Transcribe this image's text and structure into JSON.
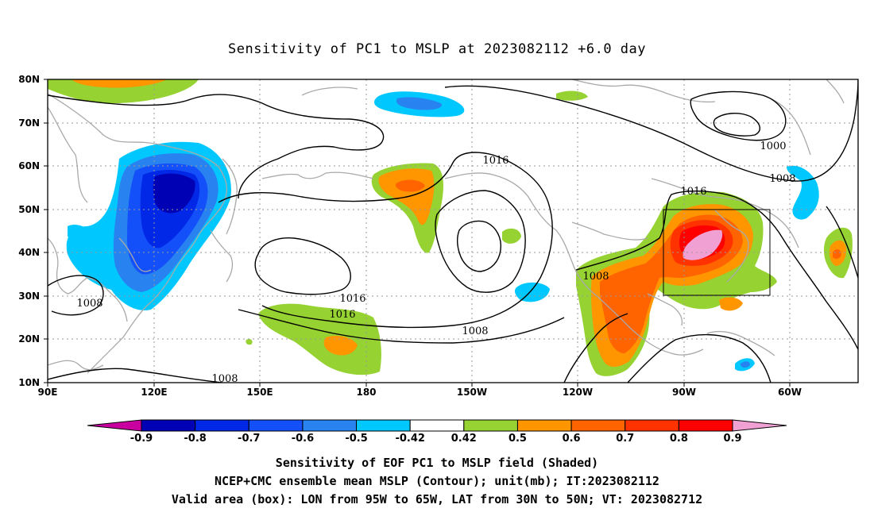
{
  "title": "Sensitivity of PC1 to MSLP at 2023082112 +6.0 day",
  "lat_labels": [
    "80N",
    "70N",
    "60N",
    "50N",
    "40N",
    "30N",
    "20N",
    "10N"
  ],
  "lon_labels": [
    "90E",
    "120E",
    "150E",
    "180",
    "150W",
    "120W",
    "90W",
    "60W"
  ],
  "contour_labels": [
    "1000",
    "1008",
    "1016",
    "1016",
    "1016",
    "1016",
    "1008",
    "1008",
    "1008",
    "1008"
  ],
  "colorbar": {
    "labels": [
      "-0.9",
      "-0.8",
      "-0.7",
      "-0.6",
      "-0.5",
      "-0.42",
      "0.42",
      "0.5",
      "0.6",
      "0.7",
      "0.8",
      "0.9"
    ],
    "colors": [
      "#c800a0",
      "#0000b4",
      "#0028e6",
      "#1450fa",
      "#2882f0",
      "#00c8ff",
      "#ffffff",
      "#96d232",
      "#ff9600",
      "#ff6400",
      "#ff3200",
      "#ff0000",
      "#f0a0d2"
    ]
  },
  "captions": {
    "line1": "Sensitivity of EOF PC1 to MSLP field (Shaded)",
    "line2": "NCEP+CMC ensemble mean MSLP (Contour); unit(mb); IT:2023082112",
    "line3": "Valid area (box): LON from 95W to 65W, LAT from 30N to 50N; VT: 2023082712"
  },
  "valid_box": {
    "lon_min": "95W",
    "lon_max": "65W",
    "lat_min": "30N",
    "lat_max": "50N"
  }
}
